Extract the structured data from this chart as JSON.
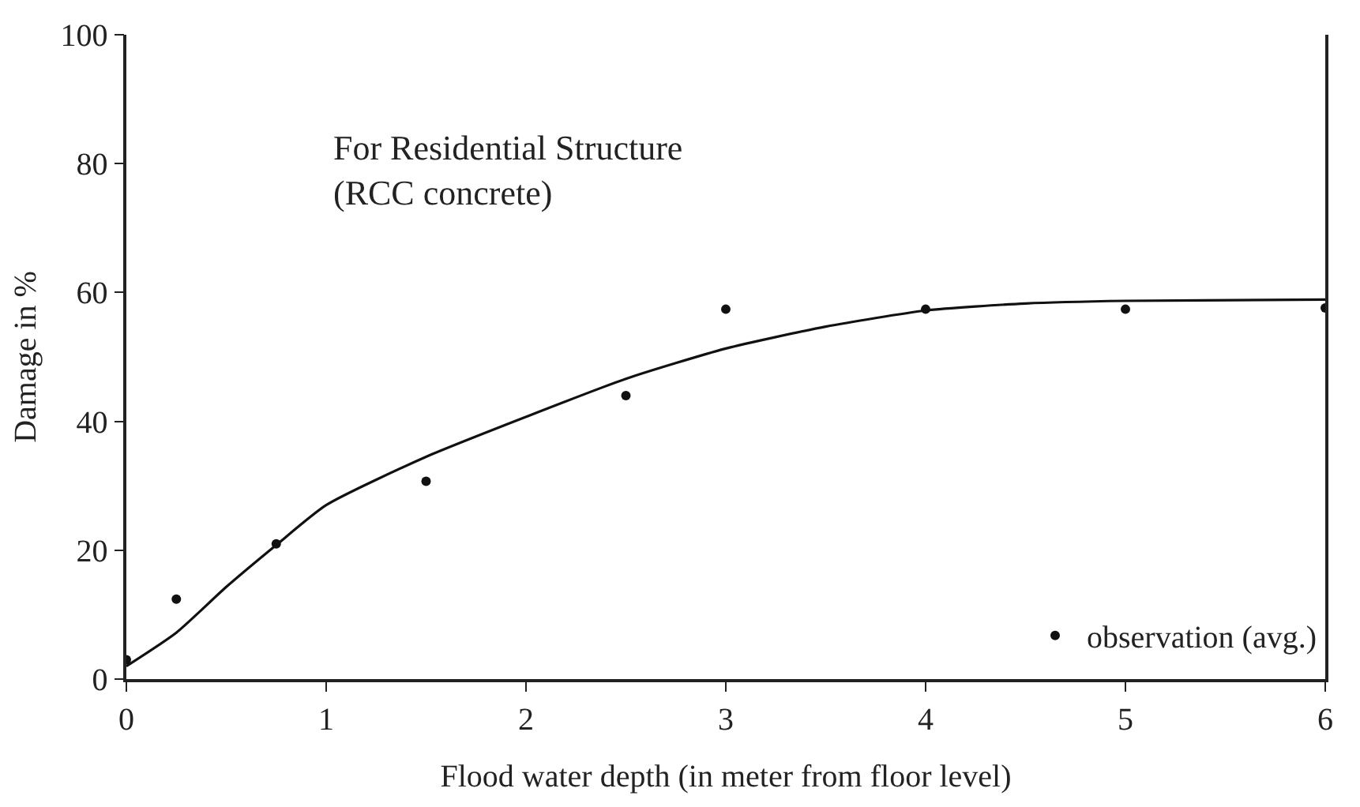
{
  "chart_data": {
    "type": "scatter",
    "xlabel": "Flood water depth (in meter from floor level)",
    "ylabel": "Damage in %",
    "annotations": [
      "For Residential Structure\n(RCC concrete)"
    ],
    "series": [
      {
        "name": "observation (avg.)",
        "color": "#111111",
        "marker": "circle",
        "x": [
          0,
          0.25,
          0.75,
          1.5,
          2.5,
          3,
          4,
          5,
          6
        ],
        "values": [
          3,
          12.4,
          21,
          30.7,
          44,
          57.4,
          57.4,
          57.4,
          57.6
        ]
      },
      {
        "type": "line",
        "color": "#111111",
        "line_style": "solid",
        "x": [
          0,
          0.25,
          0.5,
          0.75,
          1,
          1.5,
          2,
          2.5,
          3,
          3.5,
          4,
          4.5,
          5,
          6
        ],
        "values": [
          2,
          7.2,
          14.3,
          20.8,
          27,
          34.5,
          40.7,
          46.6,
          51.3,
          54.7,
          57.2,
          58.3,
          58.7,
          58.9
        ]
      }
    ],
    "xlim": [
      0,
      6
    ],
    "xticks": [
      0,
      1,
      2,
      3,
      4,
      5,
      6
    ],
    "ylim": [
      0,
      100
    ],
    "yticks": [
      0,
      20,
      40,
      60,
      80,
      100
    ],
    "legend": "bottom right"
  }
}
